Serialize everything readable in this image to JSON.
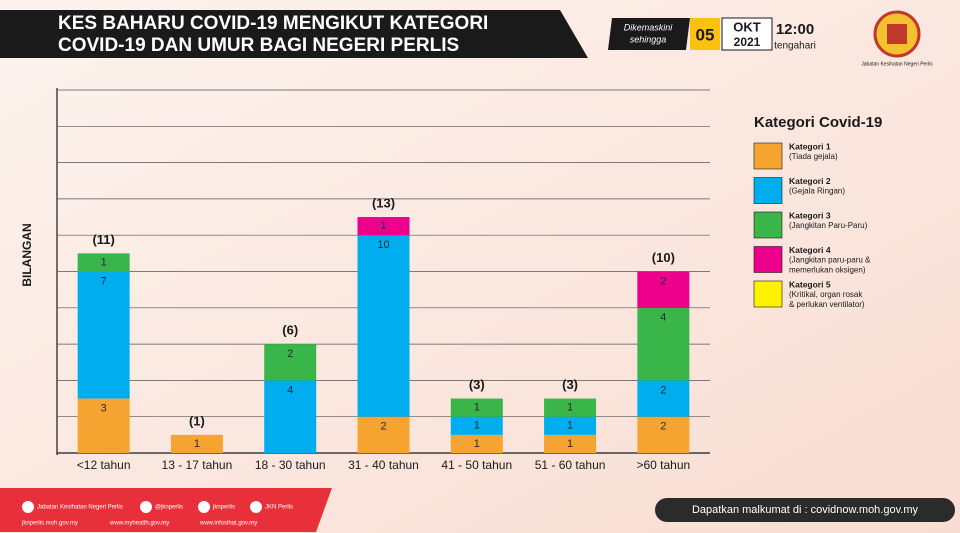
{
  "chart_data": {
    "type": "stacked_bar",
    "title_lines": [
      "KES BAHARU COVID-19 MENGIKUT KATEGORI",
      "COVID-19 DAN UMUR BAGI NEGERI PERLIS"
    ],
    "updated": {
      "label_lines": [
        "Dikemaskini",
        "sehingga"
      ],
      "day": "05",
      "month": "OKT",
      "year": "2021",
      "time": "12:00",
      "period": "tengahari"
    },
    "logo_caption": "Jabatan Kesihatan Negeri Perlis",
    "y_label": "BILANGAN",
    "categories": [
      "<12 tahun",
      "13 - 17 tahun",
      "18 - 30 tahun",
      "31 - 40 tahun",
      "41 - 50 tahun",
      "51 - 60 tahun",
      ">60 tahun"
    ],
    "series": [
      {
        "name": "Kategori 1",
        "description": "(Tiada gejala)",
        "color": "#f5a331",
        "values": [
          3,
          1,
          null,
          2,
          1,
          1,
          2
        ]
      },
      {
        "name": "Kategori 2",
        "description": "(Gejala Ringan)",
        "color": "#00aeef",
        "values": [
          7,
          null,
          4,
          10,
          1,
          1,
          2
        ]
      },
      {
        "name": "Kategori 3",
        "description": "(Jangkitan Paru-Paru)",
        "color": "#39b54a",
        "values": [
          1,
          null,
          2,
          null,
          1,
          1,
          4
        ]
      },
      {
        "name": "Kategori 4",
        "description": "(Jangkitan paru-paru & memerlukan oksigen)",
        "color": "#ec008c",
        "values": [
          null,
          null,
          null,
          1,
          null,
          null,
          2
        ]
      },
      {
        "name": "Kategori 5",
        "description": "(Kritikal, organ rosak & perlukan ventilator)",
        "color": "#fff200",
        "values": [
          null,
          null,
          null,
          null,
          null,
          null,
          null
        ]
      }
    ],
    "totals": [
      11,
      1,
      6,
      13,
      3,
      3,
      10
    ],
    "total_labels": [
      "(11)",
      "(1)",
      "(6)",
      "(13)",
      "(3)",
      "(3)",
      "(10)"
    ],
    "legend_title": "Kategori Covid-19",
    "ylim": [
      0,
      20
    ],
    "yticks": [
      0,
      2,
      4,
      6,
      8,
      10,
      12,
      14,
      16,
      18,
      20
    ],
    "grid": true,
    "footer": {
      "social": [
        "Jabatan Kesihatan Negeri Perlis",
        "@jknperlis",
        "jknperlis",
        "JKN Perlis"
      ],
      "sites": [
        "jknperlis.moh.gov.my",
        "www.myhealth.gov.my",
        "www.infosihat.gov.my"
      ],
      "info": "Dapatkan malkumat di : covidnow.moh.gov.my"
    }
  }
}
